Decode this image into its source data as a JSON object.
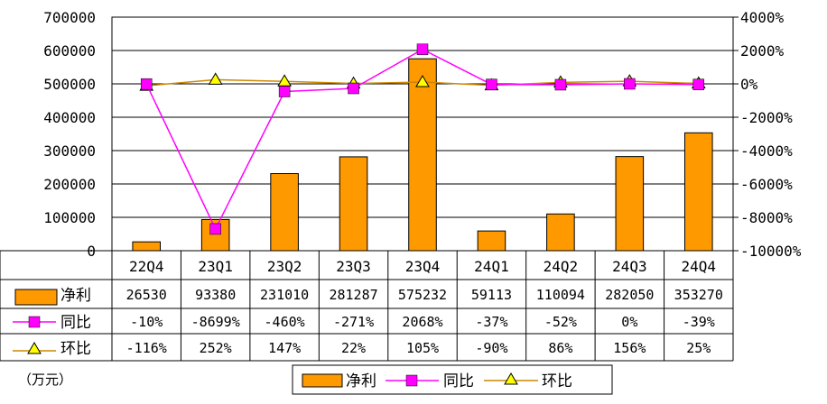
{
  "unit_note": "（万元）",
  "colors": {
    "net_profit": "#ff9900",
    "yoy": "#ff00ff",
    "qoq_line": "#cc8800",
    "qoq_marker": "#ffff00"
  },
  "chart_data": {
    "type": "bar",
    "categories": [
      "22Q4",
      "23Q1",
      "23Q2",
      "23Q3",
      "23Q4",
      "24Q1",
      "24Q2",
      "24Q3",
      "24Q4"
    ],
    "left_axis": {
      "min": 0,
      "max": 700000,
      "step": 100000,
      "ticks": [
        "700000",
        "600000",
        "500000",
        "400000",
        "300000",
        "200000",
        "100000",
        "0"
      ]
    },
    "right_axis": {
      "min": -10000,
      "max": 4000,
      "step": 2000,
      "unit": "%",
      "ticks": [
        "4000%",
        "2000%",
        "0%",
        "-2000%",
        "-4000%",
        "-6000%",
        "-8000%",
        "-10000%"
      ]
    },
    "grid": true,
    "legend_position": "bottom",
    "series": [
      {
        "name": "净利",
        "type": "bar",
        "axis": "left",
        "values": [
          26530,
          93380,
          231010,
          281287,
          575232,
          59113,
          110094,
          282050,
          353270
        ],
        "labels": [
          "26530",
          "93380",
          "231010",
          "281287",
          "575232",
          "59113",
          "110094",
          "282050",
          "353270"
        ]
      },
      {
        "name": "同比",
        "type": "line",
        "axis": "right",
        "marker": "square",
        "values": [
          -10,
          -8699,
          -460,
          -271,
          2068,
          -37,
          -52,
          0,
          -39
        ],
        "labels": [
          "-10%",
          "-8699%",
          "-460%",
          "-271%",
          "2068%",
          "-37%",
          "-52%",
          "0%",
          "-39%"
        ]
      },
      {
        "name": "环比",
        "type": "line",
        "axis": "right",
        "marker": "triangle",
        "values": [
          -116,
          252,
          147,
          22,
          105,
          -90,
          86,
          156,
          25
        ],
        "labels": [
          "-116%",
          "252%",
          "147%",
          "22%",
          "105%",
          "-90%",
          "86%",
          "156%",
          "25%"
        ]
      }
    ]
  }
}
